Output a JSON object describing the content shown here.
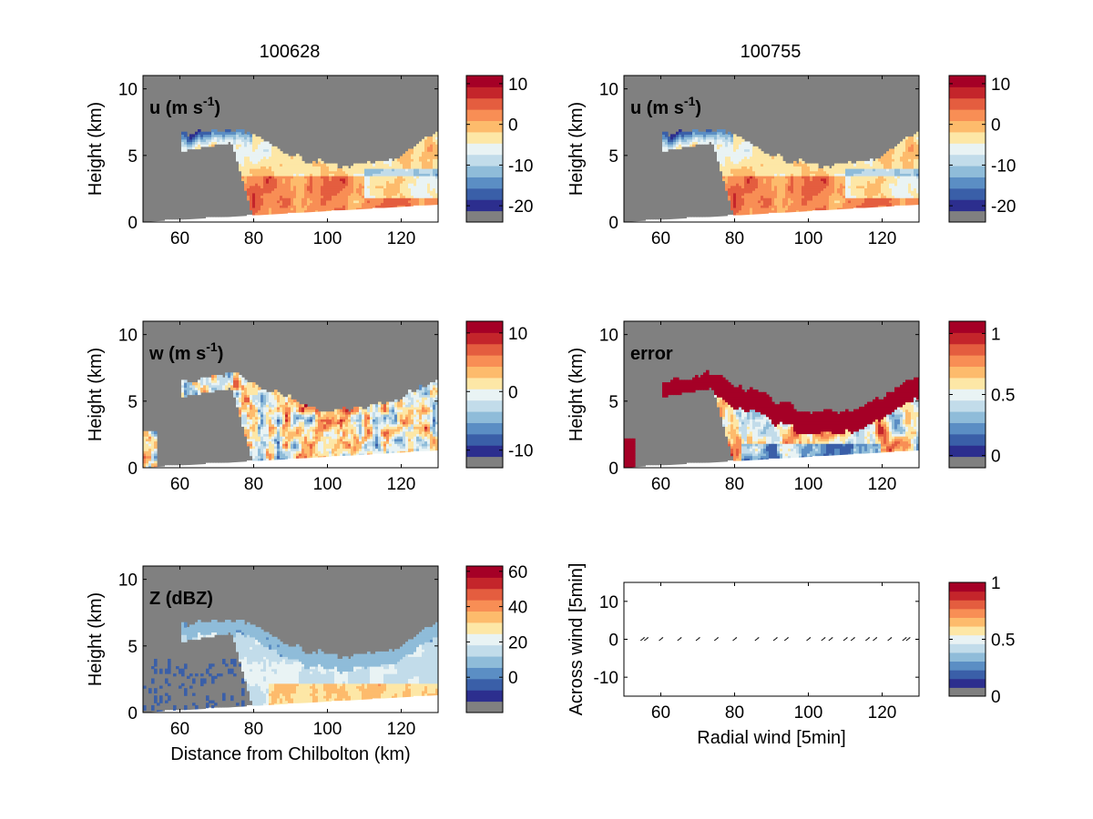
{
  "titles": [
    "100628",
    "100755"
  ],
  "chart_data": [
    {
      "type": "heatmap",
      "label": "u (m s",
      "label_sup": "-1",
      "label_end": ")",
      "xlabel": "",
      "ylabel": "Height (km)",
      "xlim": [
        50,
        130
      ],
      "ylim": [
        0,
        11
      ],
      "xticks": [
        "60",
        "80",
        "100",
        "120"
      ],
      "yticks": [
        "0",
        "5",
        "10"
      ],
      "cbar_ticks": [
        {
          "v": 10,
          "t": "10"
        },
        {
          "v": 0,
          "t": "0"
        },
        {
          "v": -10,
          "t": "-10"
        },
        {
          "v": -20,
          "t": "-20"
        }
      ],
      "cbar_range": [
        -24,
        12
      ],
      "field": "u"
    },
    {
      "type": "heatmap",
      "label": "u (m s",
      "label_sup": "-1",
      "label_end": ")",
      "xlabel": "",
      "ylabel": "Height (km)",
      "xlim": [
        50,
        130
      ],
      "ylim": [
        0,
        11
      ],
      "xticks": [
        "60",
        "80",
        "100",
        "120"
      ],
      "yticks": [
        "0",
        "5",
        "10"
      ],
      "cbar_ticks": [
        {
          "v": 10,
          "t": "10"
        },
        {
          "v": 0,
          "t": "0"
        },
        {
          "v": -10,
          "t": "-10"
        },
        {
          "v": -20,
          "t": "-20"
        }
      ],
      "cbar_range": [
        -24,
        12
      ],
      "field": "u"
    },
    {
      "type": "heatmap",
      "label": "w (m s",
      "label_sup": "-1",
      "label_end": ")",
      "xlabel": "",
      "ylabel": "Height (km)",
      "xlim": [
        50,
        130
      ],
      "ylim": [
        0,
        11
      ],
      "xticks": [
        "60",
        "80",
        "100",
        "120"
      ],
      "yticks": [
        "0",
        "5",
        "10"
      ],
      "cbar_ticks": [
        {
          "v": 10,
          "t": "10"
        },
        {
          "v": 0,
          "t": "0"
        },
        {
          "v": -10,
          "t": "-10"
        }
      ],
      "cbar_range": [
        -13,
        12
      ],
      "field": "w"
    },
    {
      "type": "heatmap",
      "label": "error",
      "label_sup": "",
      "label_end": "",
      "xlabel": "",
      "ylabel": "Height (km)",
      "xlim": [
        50,
        130
      ],
      "ylim": [
        0,
        11
      ],
      "xticks": [
        "60",
        "80",
        "100",
        "120"
      ],
      "yticks": [
        "0",
        "5",
        "10"
      ],
      "cbar_ticks": [
        {
          "v": 1,
          "t": "1"
        },
        {
          "v": 0.5,
          "t": "0.5"
        },
        {
          "v": 0,
          "t": "0"
        }
      ],
      "cbar_range": [
        -0.1,
        1.1
      ],
      "field": "err"
    },
    {
      "type": "heatmap",
      "label": "Z (dBZ)",
      "label_sup": "",
      "label_end": "",
      "xlabel": "Distance from Chilbolton (km)",
      "ylabel": "Height (km)",
      "xlim": [
        50,
        130
      ],
      "ylim": [
        0,
        11
      ],
      "xticks": [
        "60",
        "80",
        "100",
        "120"
      ],
      "yticks": [
        "0",
        "5",
        "10"
      ],
      "cbar_ticks": [
        {
          "v": 60,
          "t": "60"
        },
        {
          "v": 40,
          "t": "40"
        },
        {
          "v": 20,
          "t": "20"
        },
        {
          "v": 0,
          "t": "0"
        }
      ],
      "cbar_range": [
        -20,
        63
      ],
      "field": "Z"
    },
    {
      "type": "scatter",
      "label": "",
      "xlabel": "Radial wind [5min]",
      "ylabel": "Across wind [5min]",
      "xlim": [
        50,
        130
      ],
      "ylim": [
        -15,
        15
      ],
      "xticks": [
        "60",
        "80",
        "100",
        "120"
      ],
      "yticks": [
        "10",
        "0",
        "-10"
      ],
      "cbar_ticks": [
        {
          "v": 1,
          "t": "1"
        },
        {
          "v": 0.5,
          "t": "0.5"
        },
        {
          "v": 0,
          "t": "0"
        }
      ],
      "cbar_range": [
        0,
        1
      ],
      "arrows_x": [
        55,
        56,
        60,
        65,
        70,
        75,
        80,
        86,
        91,
        94,
        100,
        104,
        106,
        110,
        112,
        116,
        118,
        122,
        126,
        127
      ],
      "arrows_y": [
        0,
        0,
        0,
        0,
        0,
        0,
        0,
        0,
        0,
        0,
        0,
        0,
        0,
        0,
        0,
        0,
        0,
        0,
        0,
        0
      ]
    }
  ],
  "colors": {
    "gray": "#808080",
    "scale": [
      "#2c2e8e",
      "#3a5fa8",
      "#5b8ec4",
      "#8fbcd9",
      "#c2dcea",
      "#e9f3f4",
      "#fde7a6",
      "#fdbb6c",
      "#f88e55",
      "#e45d3f",
      "#c4252b",
      "#a50026"
    ]
  }
}
